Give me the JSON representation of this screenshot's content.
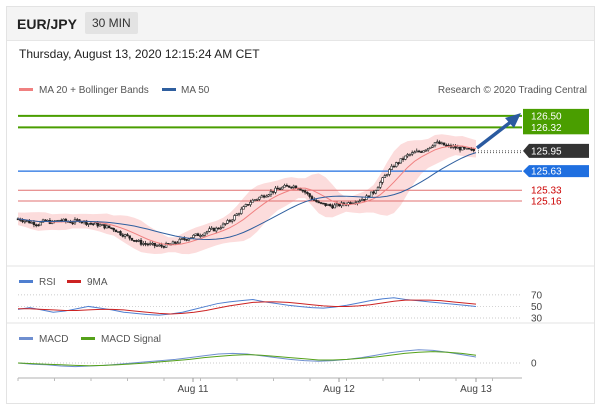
{
  "header": {
    "symbol": "EUR/JPY",
    "timeframe": "30 MIN",
    "datetime": "Thursday, August 13, 2020 12:15:24 AM CET"
  },
  "legend": {
    "ma20_label": "MA 20 + Bollinger Bands",
    "ma50_label": "MA 50",
    "rsi_label": "RSI",
    "rsi_ma_label": "9MA",
    "macd_label": "MACD",
    "macd_signal_label": "MACD Signal"
  },
  "credit": "Research © 2020 Trading Central",
  "colors": {
    "ma20": "#f08080",
    "ma50": "#2f5f9f",
    "band_fill": "#fbd6d6",
    "candle": "#222222",
    "resistance": "#4a9e00",
    "support_blue": "#1f6fe0",
    "support_red": "#cc0000",
    "rsi": "#4f7fd0",
    "rsi_ma": "#cc2222",
    "macd": "#6f8fd0",
    "macd_signal": "#55a11a",
    "last_price_bg": "#333333",
    "arrow": "#2a5aa0"
  },
  "chart_data": [
    {
      "type": "candlestick",
      "title": "",
      "x_tick_labels": [
        "Aug 11",
        "Aug 12",
        "Aug 13"
      ],
      "ylim": [
        124.2,
        126.75
      ],
      "last_price": 125.95,
      "levels": [
        {
          "value": 126.5,
          "label": "126.50",
          "kind": "resistance"
        },
        {
          "value": 126.32,
          "label": "126.32",
          "kind": "resistance"
        },
        {
          "value": 125.63,
          "label": "125.63",
          "kind": "pivot"
        },
        {
          "value": 125.33,
          "label": "125.33",
          "kind": "support"
        },
        {
          "value": 125.16,
          "label": "125.16",
          "kind": "support"
        }
      ],
      "last_price_label": "125.95",
      "ma20_end": 125.85,
      "ma50_end": 125.6,
      "close_series": [
        124.88,
        124.85,
        124.82,
        124.8,
        124.85,
        124.82,
        124.86,
        124.84,
        124.83,
        124.86,
        124.82,
        124.8,
        124.78,
        124.75,
        124.72,
        124.65,
        124.6,
        124.55,
        124.5,
        124.48,
        124.46,
        124.45,
        124.47,
        124.5,
        124.55,
        124.58,
        124.62,
        124.65,
        124.7,
        124.72,
        124.78,
        124.85,
        124.95,
        125.05,
        125.15,
        125.2,
        125.25,
        125.3,
        125.35,
        125.38,
        125.4,
        125.38,
        125.3,
        125.2,
        125.12,
        125.1,
        125.08,
        125.1,
        125.12,
        125.15,
        125.18,
        125.22,
        125.3,
        125.45,
        125.6,
        125.72,
        125.8,
        125.88,
        125.92,
        125.95,
        126.0,
        126.08,
        126.05,
        126.02,
        126.0,
        125.98,
        125.96,
        125.95
      ]
    },
    {
      "type": "line",
      "title": "",
      "ylim": [
        30,
        75
      ],
      "levels": [
        70,
        50,
        30
      ],
      "level_labels": [
        "70",
        "50",
        "30"
      ],
      "series": [
        {
          "name": "RSI",
          "values": [
            45,
            48,
            44,
            40,
            42,
            46,
            50,
            47,
            44,
            40,
            38,
            36,
            35,
            37,
            40,
            45,
            50,
            55,
            58,
            60,
            62,
            58,
            55,
            52,
            50,
            48,
            47,
            49,
            52,
            56,
            60,
            63,
            65,
            62,
            60,
            58,
            56,
            54,
            52,
            50
          ]
        },
        {
          "name": "9MA",
          "values": [
            46,
            46,
            45,
            44,
            43,
            43,
            44,
            45,
            45,
            44,
            42,
            40,
            38,
            37,
            38,
            40,
            43,
            47,
            51,
            54,
            57,
            58,
            58,
            57,
            55,
            53,
            51,
            50,
            50,
            51,
            53,
            56,
            59,
            61,
            61,
            61,
            60,
            58,
            56,
            54
          ]
        }
      ]
    },
    {
      "type": "line",
      "title": "",
      "x_tick_labels": [
        "Aug 11",
        "Aug 12",
        "Aug 13"
      ],
      "ylim": [
        -0.2,
        0.3
      ],
      "zero_label": "0",
      "series": [
        {
          "name": "MACD",
          "values": [
            0.0,
            -0.02,
            -0.03,
            -0.05,
            -0.06,
            -0.05,
            -0.04,
            -0.02,
            0.0,
            0.02,
            0.04,
            0.06,
            0.09,
            0.12,
            0.15,
            0.16,
            0.15,
            0.12,
            0.09,
            0.06,
            0.04,
            0.03,
            0.04,
            0.06,
            0.09,
            0.13,
            0.17,
            0.2,
            0.22,
            0.21,
            0.18,
            0.14,
            0.1
          ]
        },
        {
          "name": "MACD Signal",
          "values": [
            0.0,
            -0.01,
            -0.02,
            -0.03,
            -0.04,
            -0.045,
            -0.04,
            -0.03,
            -0.015,
            0.0,
            0.02,
            0.04,
            0.06,
            0.09,
            0.11,
            0.13,
            0.14,
            0.13,
            0.11,
            0.09,
            0.07,
            0.05,
            0.05,
            0.06,
            0.08,
            0.1,
            0.13,
            0.16,
            0.18,
            0.19,
            0.18,
            0.16,
            0.13
          ]
        }
      ]
    }
  ]
}
